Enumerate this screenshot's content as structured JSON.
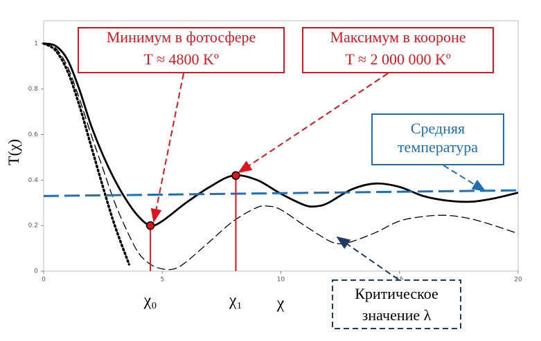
{
  "chart_data": {
    "type": "line",
    "xlabel": "χ",
    "ylabel": "T(χ)",
    "xlim": [
      0,
      20
    ],
    "ylim": [
      0,
      1.1
    ],
    "xticks": [
      0,
      5,
      10,
      15,
      20
    ],
    "yticks": [
      0,
      0.2,
      0.4,
      0.6,
      0.8,
      1
    ],
    "series": [
      {
        "color": "#000000",
        "style": "solid",
        "x": [
          0,
          0.5,
          1,
          1.5,
          2,
          2.5,
          3,
          3.5,
          4,
          4.5,
          5,
          6,
          7,
          8,
          9,
          10,
          11,
          11.5,
          12,
          13,
          14,
          15,
          16,
          17,
          18,
          19,
          20
        ],
        "values": [
          1,
          0.99,
          0.93,
          0.8,
          0.64,
          0.51,
          0.4,
          0.31,
          0.24,
          0.2,
          0.22,
          0.3,
          0.37,
          0.42,
          0.4,
          0.34,
          0.29,
          0.285,
          0.3,
          0.36,
          0.385,
          0.37,
          0.33,
          0.31,
          0.305,
          0.32,
          0.345
        ]
      },
      {
        "color": "#000000",
        "style": "dashed",
        "x": [
          0,
          0.5,
          1,
          1.5,
          2,
          2.5,
          3,
          3.5,
          4,
          4.5,
          5,
          5.5,
          6,
          7,
          8,
          9,
          9.5,
          10,
          11,
          12,
          12.5,
          13,
          14,
          15,
          16,
          17,
          18,
          19,
          20
        ],
        "values": [
          1,
          0.98,
          0.9,
          0.76,
          0.6,
          0.45,
          0.3,
          0.18,
          0.08,
          0.03,
          0.01,
          0.01,
          0.04,
          0.13,
          0.22,
          0.28,
          0.285,
          0.27,
          0.2,
          0.135,
          0.12,
          0.13,
          0.17,
          0.22,
          0.24,
          0.245,
          0.23,
          0.2,
          0.165
        ]
      },
      {
        "color": "#000000",
        "style": "dotted",
        "x": [
          0,
          0.5,
          1,
          1.5,
          2,
          2.5,
          3,
          3.6
        ],
        "values": [
          1,
          0.97,
          0.88,
          0.73,
          0.55,
          0.37,
          0.2,
          0.03
        ]
      },
      {
        "color": "#1f6fb4",
        "style": "longdash",
        "x": [
          0,
          20
        ],
        "values": [
          0.33,
          0.355
        ]
      }
    ],
    "points": {
      "color": "#e0141e",
      "x": [
        4.5,
        8.1
      ],
      "values": [
        0.2,
        0.42
      ],
      "labels": [
        "χ₀",
        "χ₁"
      ]
    },
    "annotations": [
      {
        "color": "#e0141e",
        "lines": [
          "Минимум в фотосфере",
          "T ≈ 4800 Kº"
        ]
      },
      {
        "color": "#e0141e",
        "lines": [
          "Максимум в коороне",
          "T ≈ 2 000 000 Kº"
        ]
      },
      {
        "color": "#1f6fb4",
        "lines": [
          "Средняя",
          "температура"
        ]
      },
      {
        "color": "#1f3864",
        "lines": [
          "Критическое",
          "значение λ"
        ]
      }
    ]
  }
}
